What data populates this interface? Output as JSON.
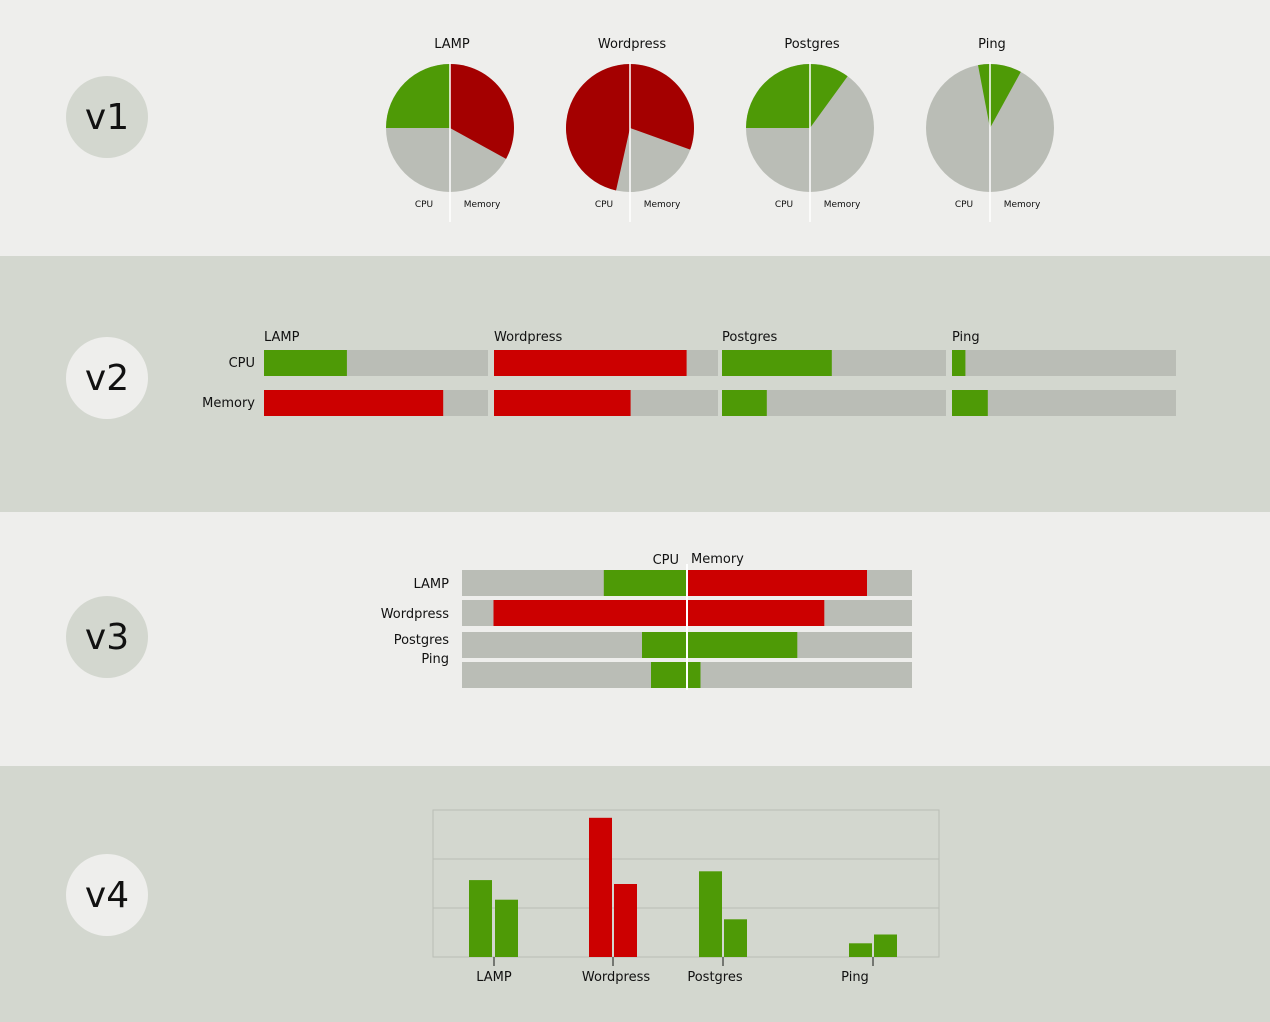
{
  "colors": {
    "ok": "#4e9a06",
    "bad_v1": "#a40000",
    "bad": "#cc0000",
    "remainder": "#babdb6",
    "band_light": "#eeeeec",
    "band_dark": "#d3d7cf"
  },
  "variants": [
    "v1",
    "v2",
    "v3",
    "v4"
  ],
  "chart_data": [
    {
      "id": "v1",
      "type": "pie",
      "slice_labels": [
        "CPU",
        "Memory"
      ],
      "charts": [
        {
          "title": "LAMP",
          "cpu": 0.5,
          "memory": 0.66,
          "cpu_status": "ok",
          "memory_status": "bad"
        },
        {
          "title": "Wordpress",
          "cpu": 0.93,
          "memory": 0.61,
          "cpu_status": "bad",
          "memory_status": "bad"
        },
        {
          "title": "Postgres",
          "cpu": 0.5,
          "memory": 0.2,
          "cpu_status": "ok",
          "memory_status": "ok"
        },
        {
          "title": "Ping",
          "cpu": 0.06,
          "memory": 0.16,
          "cpu_status": "ok",
          "memory_status": "ok"
        }
      ]
    },
    {
      "id": "v2",
      "type": "bar",
      "orientation": "horizontal",
      "row_labels": [
        "CPU",
        "Memory"
      ],
      "groups": [
        {
          "name": "LAMP",
          "cpu": 0.37,
          "memory": 0.8,
          "cpu_status": "ok",
          "memory_status": "bad"
        },
        {
          "name": "Wordpress",
          "cpu": 0.86,
          "memory": 0.61,
          "cpu_status": "bad",
          "memory_status": "bad"
        },
        {
          "name": "Postgres",
          "cpu": 0.49,
          "memory": 0.2,
          "cpu_status": "ok",
          "memory_status": "ok"
        },
        {
          "name": "Ping",
          "cpu": 0.06,
          "memory": 0.16,
          "cpu_status": "ok",
          "memory_status": "ok"
        }
      ]
    },
    {
      "id": "v3",
      "type": "bar",
      "orientation": "diverging",
      "left_label": "CPU",
      "right_label": "Memory",
      "rows": [
        {
          "name": "LAMP",
          "cpu": 0.37,
          "memory": 0.8,
          "cpu_status": "ok",
          "memory_status": "bad"
        },
        {
          "name": "Wordpress",
          "cpu": 0.86,
          "memory": 0.61,
          "cpu_status": "bad",
          "memory_status": "bad"
        },
        {
          "name": "Postgres",
          "cpu": 0.2,
          "memory": 0.49,
          "cpu_status": "ok",
          "memory_status": "ok"
        },
        {
          "name": "Ping",
          "cpu": 0.16,
          "memory": 0.06,
          "cpu_status": "ok",
          "memory_status": "ok"
        }
      ]
    },
    {
      "id": "v4",
      "type": "bar",
      "orientation": "vertical",
      "categories": [
        "LAMP",
        "Wordpress",
        "Postgres",
        "Ping"
      ],
      "ylim": [
        0,
        3
      ],
      "grid": true,
      "series": [
        {
          "values": [
            1.57,
            2.84,
            1.75,
            0.28
          ],
          "status": [
            "ok",
            "bad",
            "ok",
            "ok"
          ]
        },
        {
          "values": [
            1.17,
            1.49,
            0.77,
            0.46
          ],
          "status": [
            "ok",
            "bad",
            "ok",
            "ok"
          ]
        }
      ]
    }
  ]
}
